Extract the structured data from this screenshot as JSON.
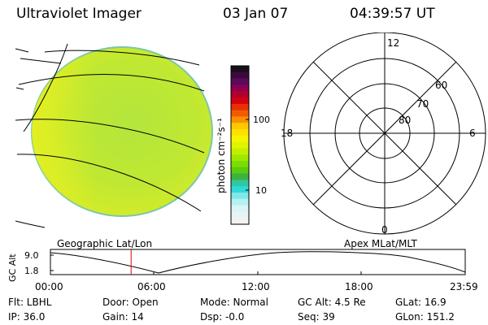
{
  "header": {
    "title": "Ultraviolet Imager",
    "date": "03 Jan 07",
    "time": "04:39:57 UT"
  },
  "colorbar": {
    "unit_label": "photon cm⁻²s⁻¹",
    "ticks": [
      "100",
      "10"
    ],
    "bands": [
      "#1a0f1a",
      "#3b0a3b",
      "#5b0a5b",
      "#8b0050",
      "#b00030",
      "#d40010",
      "#e83000",
      "#f25a00",
      "#f99000",
      "#ffc800",
      "#ffe000",
      "#f6f400",
      "#e0f400",
      "#c4f000",
      "#a0e800",
      "#7cdc00",
      "#58cc10",
      "#40b040",
      "#30c8a0",
      "#30d8d8",
      "#80e8e8",
      "#b8f0f0",
      "#d8f4f4",
      "#e8f4f4",
      "#f2f2f2"
    ]
  },
  "polar_grid": {
    "lat_labels": [
      "60",
      "70",
      "80"
    ],
    "mlt_labels": {
      "top": "12",
      "left": "18",
      "right": "6",
      "bottom": "0"
    }
  },
  "orbit_panel": {
    "left_label": "Geographic Lat/Lon",
    "right_label": "Apex MLat/MLT",
    "y_axis_label": "GC Alt",
    "y_ticks": [
      "9.0",
      "1.8"
    ],
    "x_ticks": [
      "00:00",
      "06:00",
      "12:00",
      "18:00",
      "23:59"
    ],
    "current_time_hours": 4.67
  },
  "status": {
    "flt": "Flt: LBHL",
    "ip": "IP: 36.0",
    "door": "Door: Open",
    "gain": "Gain: 14",
    "mode": "Mode: Normal",
    "dsp": "Dsp:  -0.0",
    "gc_alt": "GC Alt: 4.5 Re",
    "seq": "Seq: 39",
    "glat": "GLat: 16.9",
    "glon": "GLon: 151.2"
  }
}
